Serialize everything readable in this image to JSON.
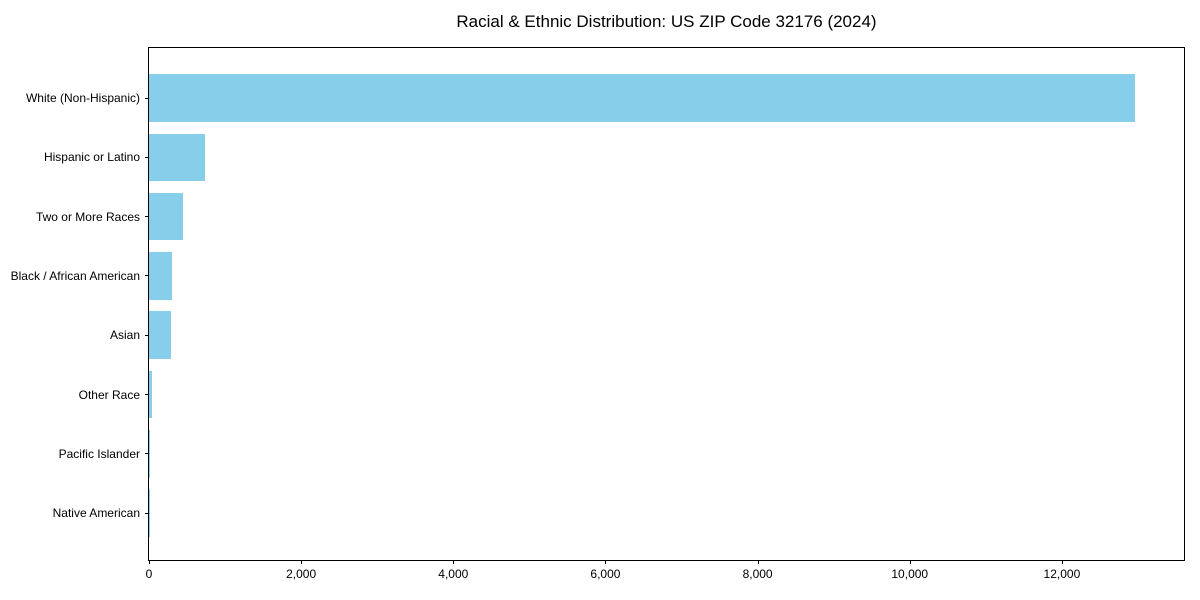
{
  "chart_data": {
    "type": "bar",
    "orientation": "horizontal",
    "title": "Racial & Ethnic Distribution: US ZIP Code 32176 (2024)",
    "categories": [
      "White (Non-Hispanic)",
      "Hispanic or Latino",
      "Two or More Races",
      "Black / African American",
      "Asian",
      "Other Race",
      "Pacific Islander",
      "Native American"
    ],
    "values": [
      12960,
      740,
      450,
      300,
      290,
      45,
      12,
      3
    ],
    "xlabel": "",
    "ylabel": "",
    "xlim": [
      0,
      13605
    ],
    "x_ticks": [
      0,
      2000,
      4000,
      6000,
      8000,
      10000,
      12000
    ],
    "x_tick_labels": [
      "0",
      "2,000",
      "4,000",
      "6,000",
      "8,000",
      "10,000",
      "12,000"
    ],
    "grid": false,
    "legend": null,
    "bar_color": "#87CEEB",
    "axis_color": "#000000",
    "text_color": "#000000",
    "background": "#FFFFFF"
  }
}
